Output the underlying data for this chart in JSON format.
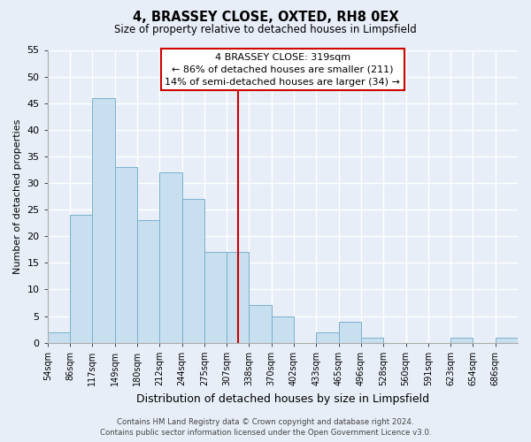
{
  "title": "4, BRASSEY CLOSE, OXTED, RH8 0EX",
  "subtitle": "Size of property relative to detached houses in Limpsfield",
  "xlabel": "Distribution of detached houses by size in Limpsfield",
  "ylabel": "Number of detached properties",
  "bin_labels": [
    "54sqm",
    "86sqm",
    "117sqm",
    "149sqm",
    "180sqm",
    "212sqm",
    "244sqm",
    "275sqm",
    "307sqm",
    "338sqm",
    "370sqm",
    "402sqm",
    "433sqm",
    "465sqm",
    "496sqm",
    "528sqm",
    "560sqm",
    "591sqm",
    "623sqm",
    "654sqm",
    "686sqm"
  ],
  "bar_heights": [
    2,
    24,
    46,
    33,
    23,
    32,
    27,
    17,
    17,
    7,
    5,
    0,
    2,
    4,
    1,
    0,
    0,
    0,
    1,
    0,
    1
  ],
  "bar_color": "#c8dff0",
  "bar_edge_color": "#7ab0cc",
  "vline_x": 8.5,
  "vline_color": "#cc0000",
  "annotation_title": "4 BRASSEY CLOSE: 319sqm",
  "annotation_line1": "← 86% of detached houses are smaller (211)",
  "annotation_line2": "14% of semi-detached houses are larger (34) →",
  "annotation_box_color": "#ffffff",
  "annotation_box_edge": "#cc0000",
  "ylim": [
    0,
    55
  ],
  "yticks": [
    0,
    5,
    10,
    15,
    20,
    25,
    30,
    35,
    40,
    45,
    50,
    55
  ],
  "footer1": "Contains HM Land Registry data © Crown copyright and database right 2024.",
  "footer2": "Contains public sector information licensed under the Open Government Licence v3.0.",
  "bg_color": "#e8eef8"
}
